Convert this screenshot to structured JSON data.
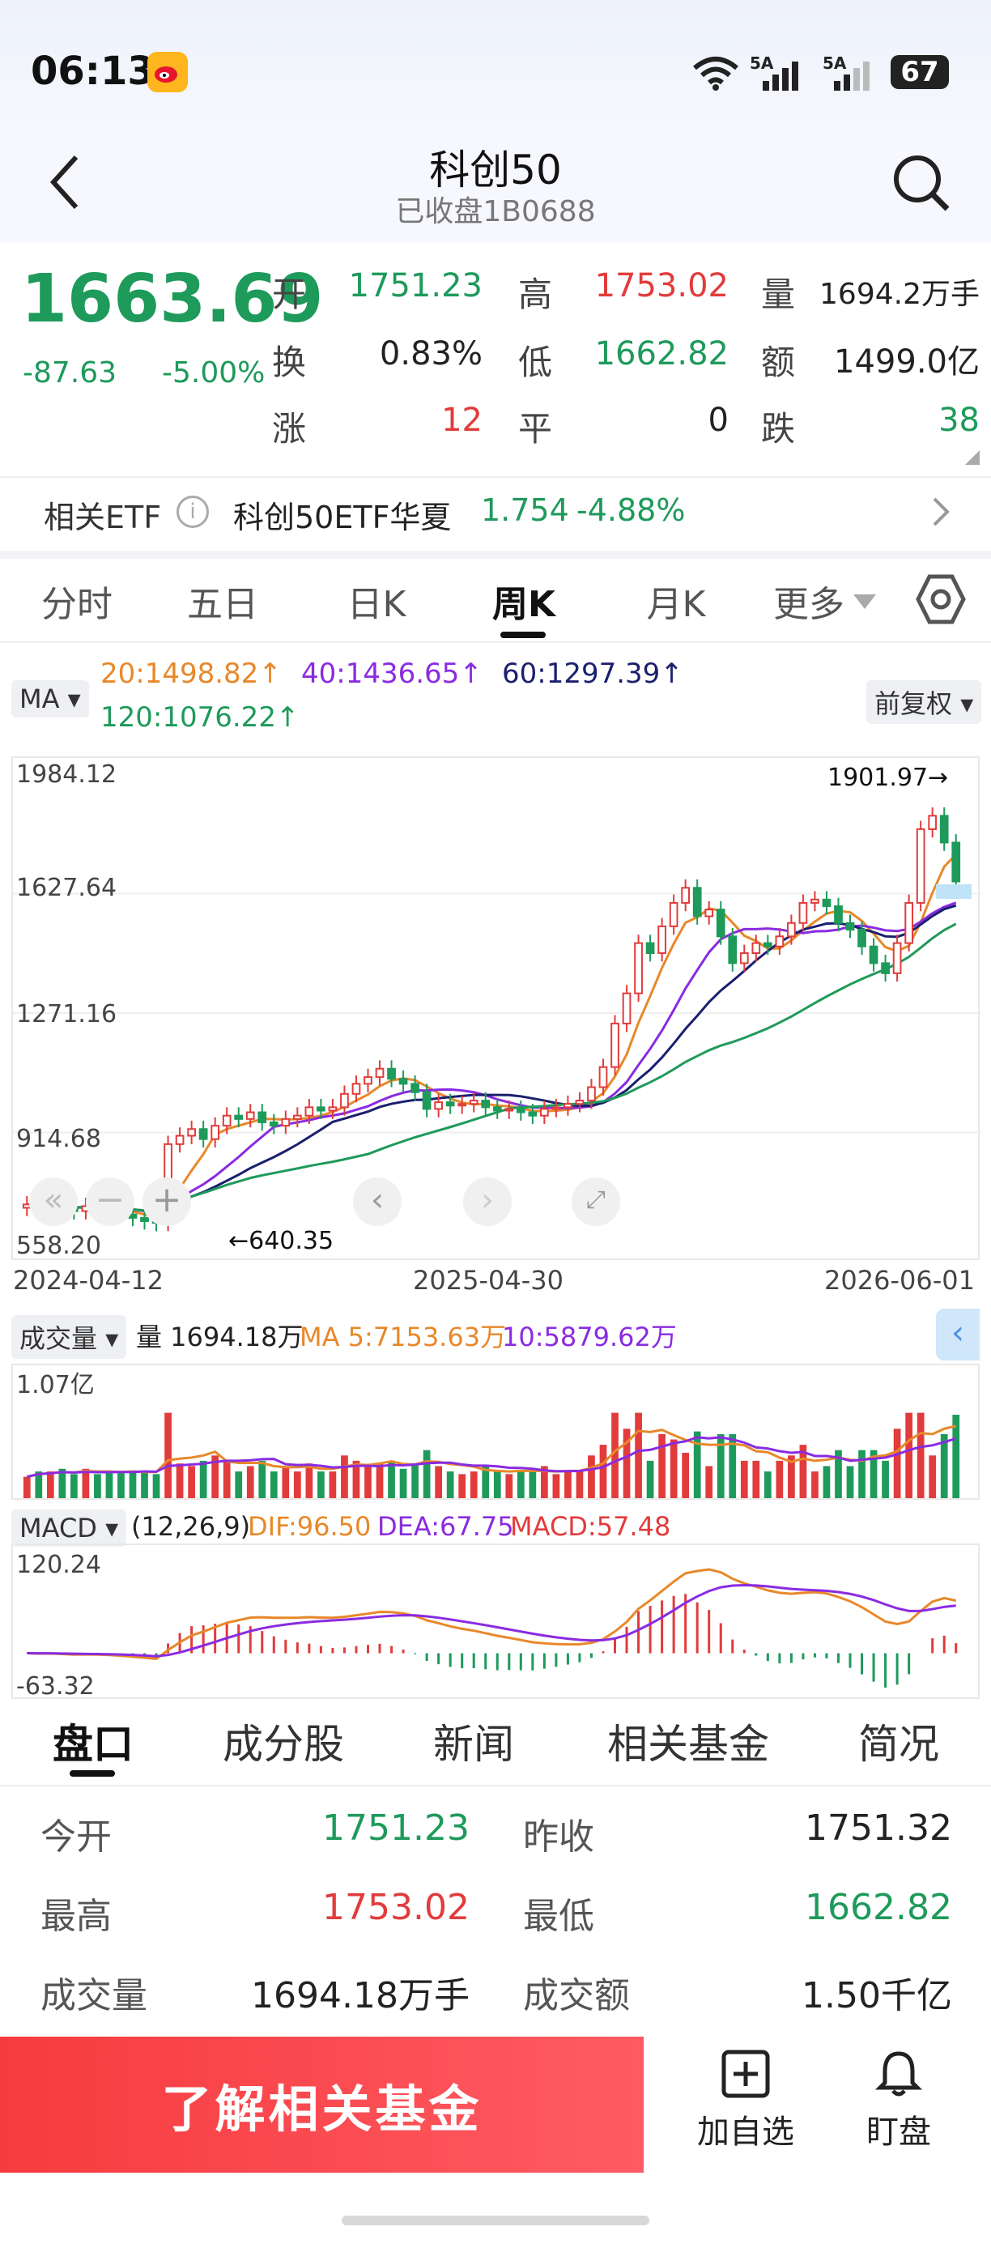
{
  "status_bar": {
    "time": "06:13",
    "network1": "5A",
    "network2": "5A",
    "battery": "67"
  },
  "header": {
    "title": "科创50",
    "subtitle": "已收盘1B0688"
  },
  "quote": {
    "price": "1663.69",
    "change": "-87.63",
    "change_pct": "-5.00%",
    "rows": [
      [
        {
          "label": "开",
          "value": "1751.23",
          "color": "green"
        },
        {
          "label": "高",
          "value": "1753.02",
          "color": "red"
        },
        {
          "label": "量",
          "value": "1694.2万手",
          "color": "black"
        }
      ],
      [
        {
          "label": "换",
          "value": "0.83%",
          "color": "black"
        },
        {
          "label": "低",
          "value": "1662.82",
          "color": "green"
        },
        {
          "label": "额",
          "value": "1499.0亿",
          "color": "black"
        }
      ],
      [
        {
          "label": "涨",
          "value": "12",
          "color": "red"
        },
        {
          "label": "平",
          "value": "0",
          "color": "black"
        },
        {
          "label": "跌",
          "value": "38",
          "color": "green"
        }
      ]
    ]
  },
  "etf": {
    "label": "相关ETF",
    "name": "科创50ETF华夏",
    "price": "1.754",
    "change": "-4.88%"
  },
  "tabs": [
    "分时",
    "五日",
    "日K",
    "周K",
    "月K",
    "更多"
  ],
  "active_tab": 3,
  "ma_bar": {
    "selector": "MA",
    "adjust": "前复权",
    "ma20": "20:1498.82↑",
    "ma40": "40:1436.65↑",
    "ma60": "60:1297.39↑",
    "ma120": "120:1076.22↑",
    "colors": {
      "ma20": "#e8882a",
      "ma40": "#8a2be2",
      "ma60": "#1a1f6e",
      "ma120": "#1e9a5b"
    }
  },
  "chart_data": {
    "type": "candlestick",
    "y_ticks": [
      "1984.12",
      "1627.64",
      "1271.16",
      "914.68",
      "558.20"
    ],
    "ylim": [
      558.2,
      1984.12
    ],
    "x_ticks": [
      "2024-04-12",
      "2025-04-30",
      "2026-06-01"
    ],
    "high_label": "1901.97→",
    "low_label": "←640.35",
    "close_series": [
      700,
      690,
      700,
      685,
      680,
      695,
      690,
      680,
      670,
      660,
      650,
      645,
      880,
      905,
      925,
      895,
      935,
      965,
      955,
      975,
      945,
      935,
      955,
      965,
      990,
      980,
      990,
      1030,
      1060,
      1080,
      1105,
      1075,
      1060,
      1035,
      985,
      1005,
      995,
      1000,
      1010,
      990,
      980,
      985,
      975,
      965,
      985,
      990,
      1000,
      1010,
      1050,
      1110,
      1240,
      1330,
      1480,
      1450,
      1530,
      1600,
      1645,
      1560,
      1580,
      1500,
      1420,
      1450,
      1480,
      1470,
      1500,
      1540,
      1600,
      1610,
      1590,
      1540,
      1520,
      1470,
      1420,
      1390,
      1480,
      1600,
      1820,
      1860,
      1780,
      1663.69
    ]
  },
  "volume_panel": {
    "selector": "成交量",
    "vol": "量 1694.18万",
    "ma5": "MA 5:7153.63万",
    "ma10": "10:5879.62万",
    "top_tick": "1.07亿"
  },
  "macd_panel": {
    "selector": "MACD",
    "params": "(12,26,9)",
    "dif": "DIF:96.50",
    "dea": "DEA:67.75",
    "macd": "MACD:57.48",
    "top_tick": "120.24",
    "bottom_tick": "-63.32"
  },
  "bottom_tabs": [
    "盘口",
    "成分股",
    "新闻",
    "相关基金",
    "简况"
  ],
  "info": [
    [
      {
        "label": "今开",
        "value": "1751.23",
        "color": "green"
      },
      {
        "label": "昨收",
        "value": "1751.32",
        "color": "black"
      }
    ],
    [
      {
        "label": "最高",
        "value": "1753.02",
        "color": "red"
      },
      {
        "label": "最低",
        "value": "1662.82",
        "color": "green"
      }
    ],
    [
      {
        "label": "成交量",
        "value": "1694.18万手",
        "color": "black"
      },
      {
        "label": "成交额",
        "value": "1.50千亿",
        "color": "black"
      }
    ]
  ],
  "actions": {
    "main": "了解相关基金",
    "add": "加自选",
    "watch": "盯盘"
  }
}
